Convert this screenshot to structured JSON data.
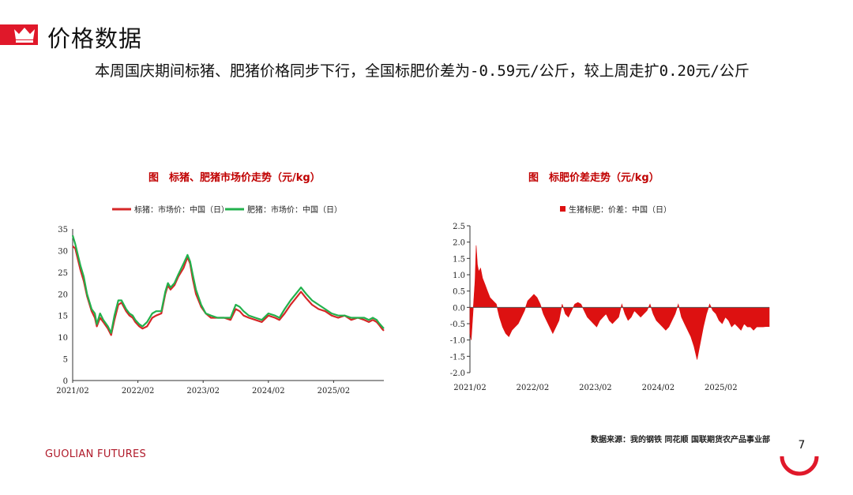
{
  "header": {
    "title": "价格数据",
    "summary": "本周国庆期间标猪、肥猪价格同步下行，全国标肥价差为-0.59元/公斤，较上周走扩0.20元/公斤"
  },
  "colors": {
    "brand": "#e0182a",
    "standard_pig": "#d62728",
    "fat_pig": "#22b14c",
    "spread": "#dd1111"
  },
  "chart_data": [
    {
      "type": "line",
      "title": "图　标猪、肥猪市场价走势（元/kg）",
      "legend": [
        "标猪：市场价：中国（日）",
        "肥猪：市场价：中国（日）"
      ],
      "x_tick_labels": [
        "2021/02",
        "2022/02",
        "2023/02",
        "2024/02",
        "2025/02"
      ],
      "y_ticks": [
        0,
        5,
        10,
        15,
        20,
        25,
        30,
        35
      ],
      "ylim": [
        0,
        35
      ],
      "x_range_years": [
        2021.08,
        2025.85
      ],
      "series": [
        {
          "name": "标猪：市场价：中国（日）",
          "x": [
            2021.08,
            2021.12,
            2021.2,
            2021.25,
            2021.3,
            2021.37,
            2021.42,
            2021.45,
            2021.5,
            2021.55,
            2021.62,
            2021.67,
            2021.72,
            2021.78,
            2021.83,
            2021.9,
            2021.95,
            2022.0,
            2022.04,
            2022.1,
            2022.15,
            2022.22,
            2022.3,
            2022.36,
            2022.44,
            2022.5,
            2022.54,
            2022.58,
            2022.64,
            2022.7,
            2022.78,
            2022.84,
            2022.88,
            2022.92,
            2022.97,
            2023.05,
            2023.12,
            2023.2,
            2023.3,
            2023.4,
            2023.5,
            2023.58,
            2023.64,
            2023.7,
            2023.78,
            2023.88,
            2023.98,
            2024.08,
            2024.18,
            2024.25,
            2024.33,
            2024.42,
            2024.5,
            2024.58,
            2024.66,
            2024.75,
            2024.85,
            2024.95,
            2025.05,
            2025.15,
            2025.25,
            2025.35,
            2025.45,
            2025.55,
            2025.62,
            2025.68,
            2025.74,
            2025.78,
            2025.82,
            2025.85
          ],
          "values": [
            31.0,
            30.5,
            25.5,
            23.0,
            19.5,
            16.0,
            14.5,
            12.5,
            14.5,
            13.5,
            12.0,
            10.5,
            14.0,
            17.5,
            18.0,
            16.0,
            15.0,
            14.5,
            13.5,
            12.5,
            12.0,
            12.5,
            14.5,
            15.0,
            15.5,
            20.0,
            22.0,
            21.0,
            22.0,
            24.0,
            26.0,
            28.5,
            27.0,
            23.5,
            20.0,
            17.0,
            15.5,
            14.5,
            14.5,
            14.5,
            14.0,
            16.5,
            16.0,
            15.0,
            14.5,
            14.0,
            13.5,
            15.0,
            14.5,
            14.0,
            15.5,
            17.5,
            19.0,
            20.5,
            19.0,
            17.5,
            16.5,
            16.0,
            15.0,
            14.5,
            15.0,
            14.0,
            14.5,
            14.0,
            13.5,
            14.0,
            13.5,
            12.8,
            12.0,
            11.5
          ]
        },
        {
          "name": "肥猪：市场价：中国（日）",
          "x": [
            2021.08,
            2021.12,
            2021.2,
            2021.25,
            2021.3,
            2021.37,
            2021.42,
            2021.45,
            2021.5,
            2021.55,
            2021.62,
            2021.67,
            2021.72,
            2021.78,
            2021.83,
            2021.9,
            2021.95,
            2022.0,
            2022.04,
            2022.1,
            2022.15,
            2022.22,
            2022.3,
            2022.36,
            2022.44,
            2022.5,
            2022.54,
            2022.58,
            2022.64,
            2022.7,
            2022.78,
            2022.84,
            2022.88,
            2022.92,
            2022.97,
            2023.05,
            2023.12,
            2023.2,
            2023.3,
            2023.4,
            2023.5,
            2023.58,
            2023.64,
            2023.7,
            2023.78,
            2023.88,
            2023.98,
            2024.08,
            2024.18,
            2024.25,
            2024.33,
            2024.42,
            2024.5,
            2024.58,
            2024.66,
            2024.75,
            2024.85,
            2024.95,
            2025.05,
            2025.15,
            2025.25,
            2025.35,
            2025.45,
            2025.55,
            2025.62,
            2025.68,
            2025.74,
            2025.78,
            2025.82,
            2025.85
          ],
          "values": [
            33.5,
            31.5,
            26.5,
            24.0,
            20.0,
            16.5,
            15.5,
            13.0,
            15.5,
            14.0,
            12.5,
            11.0,
            15.0,
            18.5,
            18.5,
            16.5,
            15.5,
            15.0,
            14.0,
            13.0,
            12.5,
            13.5,
            15.5,
            16.0,
            16.0,
            20.5,
            22.5,
            21.5,
            22.5,
            24.5,
            27.0,
            29.0,
            27.5,
            24.5,
            21.0,
            17.5,
            15.5,
            15.0,
            14.5,
            14.5,
            14.5,
            17.5,
            17.0,
            16.0,
            15.0,
            14.5,
            14.0,
            15.5,
            15.0,
            14.5,
            16.5,
            18.5,
            20.0,
            21.5,
            20.0,
            18.5,
            17.5,
            16.5,
            15.5,
            15.0,
            15.0,
            14.5,
            14.5,
            14.5,
            14.0,
            14.5,
            14.0,
            13.2,
            12.5,
            12.0
          ]
        }
      ]
    },
    {
      "type": "area",
      "title": "图　标肥价差走势（元/kg）",
      "legend": [
        "生猪标肥：价差：中国（日）"
      ],
      "x_tick_labels": [
        "2021/02",
        "2022/02",
        "2023/02",
        "2024/02",
        "2025/02"
      ],
      "y_ticks": [
        2.5,
        2.0,
        1.5,
        1.0,
        0.5,
        0.0,
        -0.5,
        -1.0,
        -1.5,
        -2.0
      ],
      "y_tick_labels": [
        "2.5",
        "2.0",
        "1.5",
        "1.0",
        "0.5",
        "0.0",
        "-0.5",
        "-1.0",
        "-1.5",
        "-2.0"
      ],
      "ylim": [
        -2.0,
        2.5
      ],
      "x_range_years": [
        2021.08,
        2025.85
      ],
      "series": [
        {
          "name": "生猪标肥：价差：中国（日）",
          "x": [
            2021.08,
            2021.1,
            2021.12,
            2021.14,
            2021.16,
            2021.18,
            2021.2,
            2021.22,
            2021.25,
            2021.28,
            2021.32,
            2021.36,
            2021.4,
            2021.45,
            2021.5,
            2021.55,
            2021.6,
            2021.65,
            2021.7,
            2021.75,
            2021.8,
            2021.85,
            2021.9,
            2021.95,
            2022.0,
            2022.05,
            2022.1,
            2022.15,
            2022.2,
            2022.25,
            2022.3,
            2022.35,
            2022.4,
            2022.45,
            2022.5,
            2022.55,
            2022.6,
            2022.65,
            2022.7,
            2022.75,
            2022.8,
            2022.85,
            2022.9,
            2022.95,
            2023.0,
            2023.05,
            2023.1,
            2023.15,
            2023.2,
            2023.25,
            2023.3,
            2023.35,
            2023.4,
            2023.45,
            2023.5,
            2023.55,
            2023.6,
            2023.65,
            2023.7,
            2023.75,
            2023.8,
            2023.85,
            2023.9,
            2023.95,
            2024.0,
            2024.05,
            2024.1,
            2024.15,
            2024.2,
            2024.25,
            2024.3,
            2024.35,
            2024.4,
            2024.45,
            2024.5,
            2024.55,
            2024.6,
            2024.65,
            2024.7,
            2024.75,
            2024.8,
            2024.85,
            2024.9,
            2024.95,
            2025.0,
            2025.05,
            2025.1,
            2025.15,
            2025.2,
            2025.25,
            2025.3,
            2025.35,
            2025.4,
            2025.45,
            2025.5,
            2025.55,
            2025.6,
            2025.65,
            2025.7,
            2025.75,
            2025.8,
            2025.85
          ],
          "values": [
            -0.8,
            -1.0,
            -0.4,
            0.2,
            0.8,
            1.9,
            1.3,
            1.1,
            1.2,
            0.9,
            0.7,
            0.5,
            0.3,
            0.2,
            0.1,
            -0.3,
            -0.6,
            -0.8,
            -0.9,
            -0.7,
            -0.6,
            -0.5,
            -0.3,
            -0.1,
            0.2,
            0.3,
            0.4,
            0.3,
            0.1,
            -0.2,
            -0.4,
            -0.6,
            -0.8,
            -0.6,
            -0.4,
            0.1,
            -0.2,
            -0.3,
            -0.1,
            0.1,
            0.15,
            0.1,
            -0.1,
            -0.3,
            -0.4,
            -0.5,
            -0.6,
            -0.4,
            -0.3,
            -0.2,
            -0.4,
            -0.5,
            -0.4,
            -0.3,
            0.1,
            -0.2,
            -0.4,
            -0.3,
            -0.1,
            -0.2,
            -0.3,
            -0.2,
            -0.1,
            0.1,
            -0.2,
            -0.4,
            -0.5,
            -0.6,
            -0.7,
            -0.6,
            -0.4,
            -0.2,
            0.1,
            -0.3,
            -0.5,
            -0.7,
            -0.9,
            -1.2,
            -1.6,
            -1.1,
            -0.6,
            -0.2,
            0.1,
            -0.1,
            -0.2,
            -0.4,
            -0.5,
            -0.3,
            -0.4,
            -0.6,
            -0.5,
            -0.6,
            -0.7,
            -0.5,
            -0.6,
            -0.6,
            -0.7,
            -0.6,
            -0.6,
            -0.6,
            -0.59,
            -0.59
          ]
        }
      ]
    }
  ],
  "chart_titles": {
    "left": "图　标猪、肥猪市场价走势（元/kg）",
    "right": "图　标肥价差走势（元/kg）"
  },
  "footer": {
    "source": "数据来源：我的钢铁  同花顺  国联期货农产品事业部",
    "brand": "GUOLIAN FUTURES",
    "page_number": "7"
  }
}
